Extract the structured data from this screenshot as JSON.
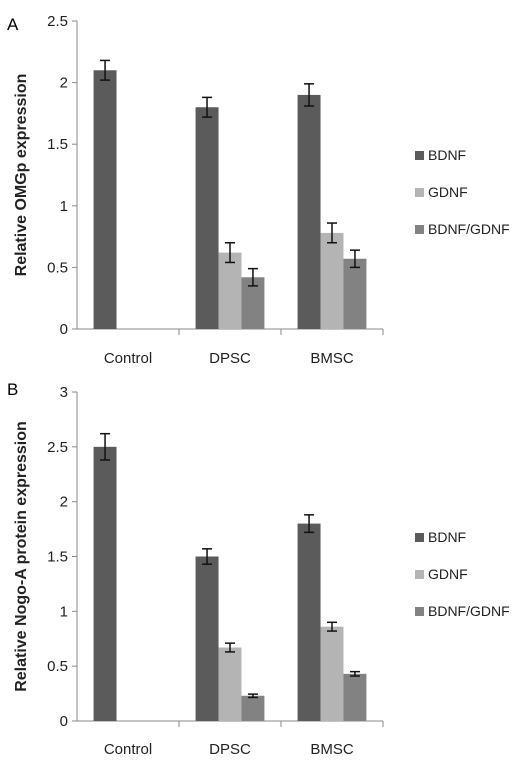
{
  "charts": [
    {
      "panel_label": "A",
      "chart_data": {
        "type": "bar",
        "categories": [
          "Control",
          "DPSC",
          "BMSC"
        ],
        "series": [
          {
            "name": "BDNF",
            "values": [
              2.1,
              1.8,
              1.9
            ],
            "errors": [
              0.08,
              0.08,
              0.09
            ],
            "color": "#5b5b5b"
          },
          {
            "name": "GDNF",
            "values": [
              null,
              0.62,
              0.78
            ],
            "errors": [
              null,
              0.08,
              0.08
            ],
            "color": "#b4b4b4"
          },
          {
            "name": "BDNF/GDNF",
            "values": [
              null,
              0.42,
              0.57
            ],
            "errors": [
              null,
              0.07,
              0.07
            ],
            "color": "#828282"
          }
        ],
        "title": "",
        "xlabel": "",
        "ylabel": "Relative OMGp expression",
        "ylim": [
          0,
          2.5
        ],
        "yticks": [
          "0",
          "0.5",
          "1",
          "1.5",
          "2",
          "2.5"
        ],
        "grid": false,
        "legend": "right"
      }
    },
    {
      "panel_label": "B",
      "chart_data": {
        "type": "bar",
        "categories": [
          "Control",
          "DPSC",
          "BMSC"
        ],
        "series": [
          {
            "name": "BDNF",
            "values": [
              2.5,
              1.5,
              1.8
            ],
            "errors": [
              0.12,
              0.07,
              0.08
            ],
            "color": "#5b5b5b"
          },
          {
            "name": "GDNF",
            "values": [
              null,
              0.67,
              0.86
            ],
            "errors": [
              null,
              0.04,
              0.04
            ],
            "color": "#b4b4b4"
          },
          {
            "name": "BDNF/GDNF",
            "values": [
              null,
              0.23,
              0.43
            ],
            "errors": [
              null,
              0.015,
              0.02
            ],
            "color": "#828282"
          }
        ],
        "title": "",
        "xlabel": "",
        "ylabel": "Relative Nogo-A protein expression",
        "ylim": [
          0,
          3
        ],
        "yticks": [
          "0",
          "0.5",
          "1",
          "1.5",
          "2",
          "2.5",
          "3"
        ],
        "grid": false,
        "legend": "right"
      }
    }
  ]
}
